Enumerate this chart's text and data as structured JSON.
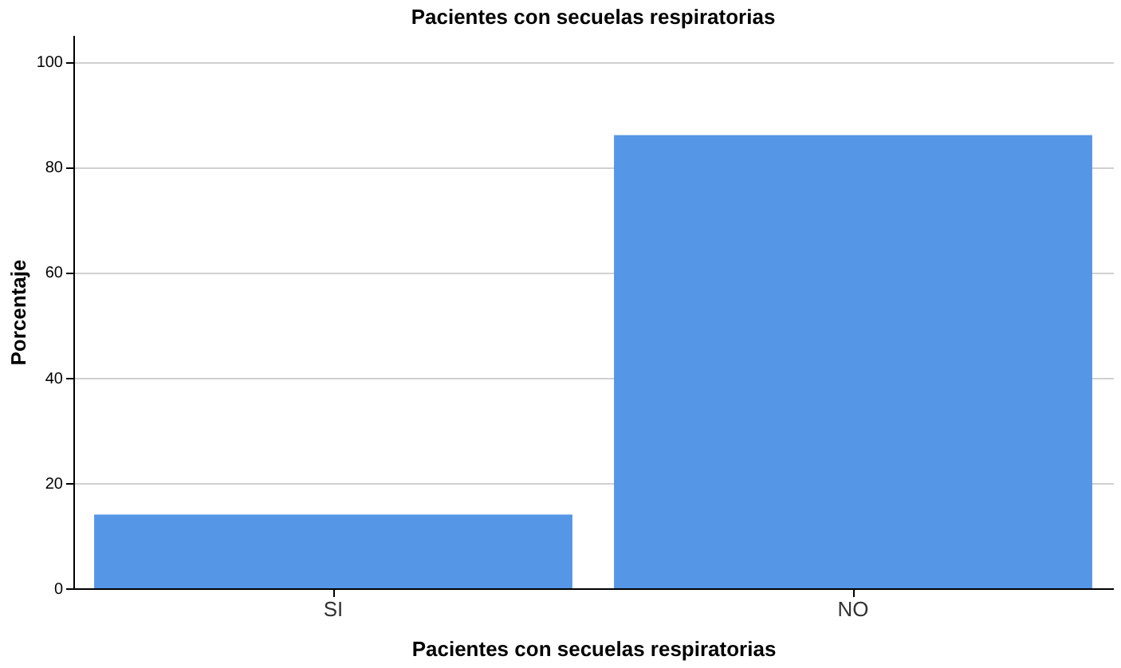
{
  "chart_data": {
    "type": "bar",
    "title": "Pacientes con secuelas respiratorias",
    "xlabel": "Pacientes con secuelas respiratorias",
    "ylabel": "Porcentaje",
    "categories": [
      "SI",
      "NO"
    ],
    "values": [
      14,
      86
    ],
    "color": "#5596e6",
    "ylim": [
      0,
      105
    ],
    "yticks": [
      0,
      20,
      40,
      60,
      80,
      100
    ],
    "grid": "y"
  }
}
